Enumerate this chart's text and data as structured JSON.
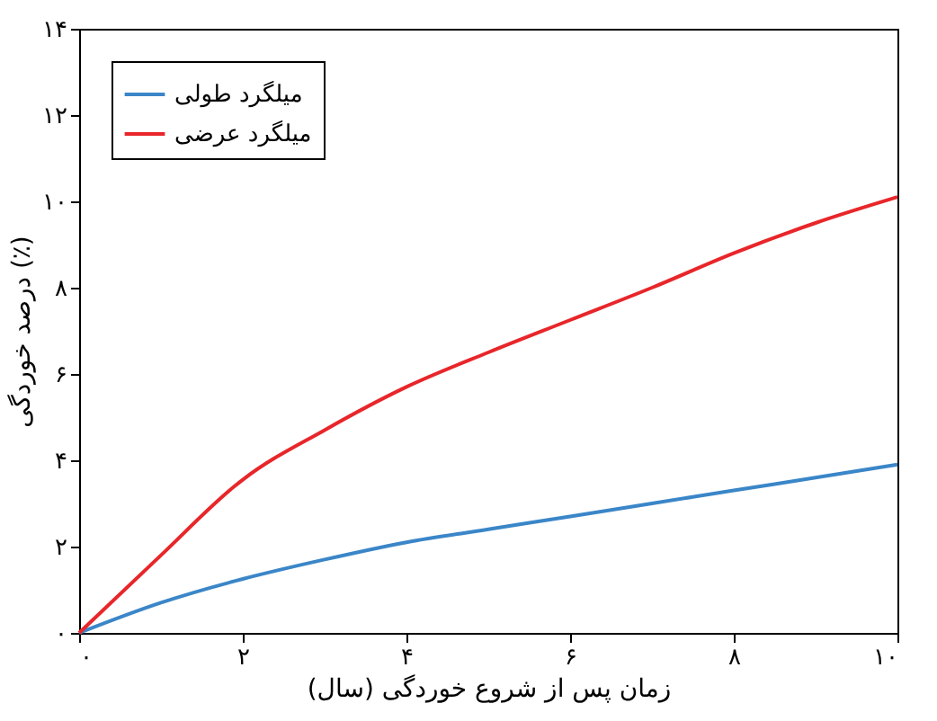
{
  "chart_data": {
    "type": "line",
    "xlabel": "زمان پس از شروع خوردگی (سال)",
    "ylabel": "درصد خوردگی (٪)",
    "x": [
      0,
      1,
      1.9,
      2,
      3,
      4,
      5,
      6,
      7,
      8,
      9,
      10
    ],
    "series": [
      {
        "name": "میلگرد طولی",
        "color": "#3a86c8",
        "values": [
          0,
          0.7,
          1.2,
          1.25,
          1.7,
          2.1,
          2.4,
          2.7,
          3.0,
          3.3,
          3.6,
          3.9
        ]
      },
      {
        "name": "میلگرد عرضی",
        "color": "#e8262a",
        "values": [
          0,
          1.8,
          3.4,
          3.55,
          4.7,
          5.7,
          6.5,
          7.25,
          8.0,
          8.8,
          9.5,
          10.1
        ]
      }
    ],
    "xlim": [
      0,
      10
    ],
    "ylim": [
      0,
      14
    ],
    "xticks": [
      {
        "value": 0,
        "label": "۰"
      },
      {
        "value": 2,
        "label": "۲"
      },
      {
        "value": 4,
        "label": "۴"
      },
      {
        "value": 6,
        "label": "۶"
      },
      {
        "value": 8,
        "label": "۸"
      },
      {
        "value": 10,
        "label": "۱۰"
      }
    ],
    "yticks": [
      {
        "value": 0,
        "label": "۰"
      },
      {
        "value": 2,
        "label": "۲"
      },
      {
        "value": 4,
        "label": "۴"
      },
      {
        "value": 6,
        "label": "۶"
      },
      {
        "value": 8,
        "label": "۸"
      },
      {
        "value": 10,
        "label": "۱۰"
      },
      {
        "value": 12,
        "label": "۱۲"
      },
      {
        "value": 14,
        "label": "۱۴"
      }
    ],
    "grid": false,
    "legend": "top left",
    "line_style": "solid",
    "marker": "none"
  }
}
